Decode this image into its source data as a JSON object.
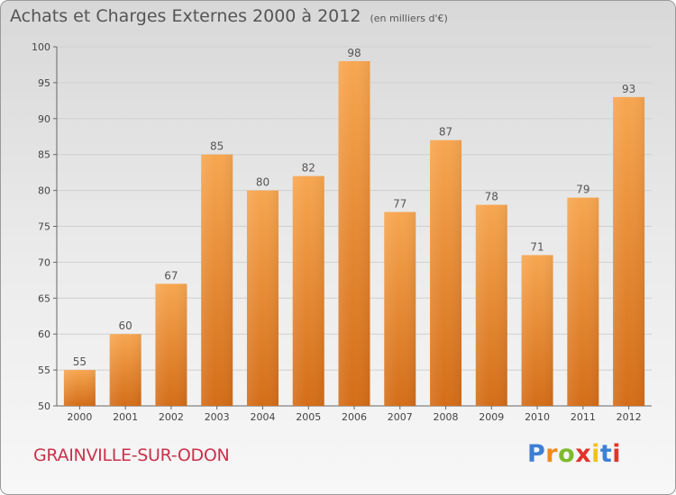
{
  "header": {
    "title": "Achats et Charges Externes 2000 à 2012",
    "subtitle": "(en milliers d'€)"
  },
  "footer": {
    "commune": "GRAINVILLE-SUR-ODON",
    "logo_text": "Proxiti",
    "logo_colors": [
      "#3d7fd6",
      "#f08a1e",
      "#7dbb2c",
      "#e0352b",
      "#f0c21e",
      "#3d7fd6",
      "#e0352b"
    ]
  },
  "chart_data": {
    "type": "bar",
    "title": "Achats et Charges Externes 2000 à 2012",
    "subtitle": "(en milliers d'€)",
    "categories": [
      "2000",
      "2001",
      "2002",
      "2003",
      "2004",
      "2005",
      "2006",
      "2007",
      "2008",
      "2009",
      "2010",
      "2011",
      "2012"
    ],
    "values": [
      55,
      60,
      67,
      85,
      80,
      82,
      98,
      77,
      87,
      78,
      71,
      79,
      93
    ],
    "ylim": [
      50,
      100
    ],
    "yticks": [
      50,
      55,
      60,
      65,
      70,
      75,
      80,
      85,
      90,
      95,
      100
    ],
    "xlabel": "",
    "ylabel": "",
    "grid": true,
    "legend": "none",
    "bar_color_top": "#f7a650",
    "bar_color_bottom": "#d46d18"
  }
}
